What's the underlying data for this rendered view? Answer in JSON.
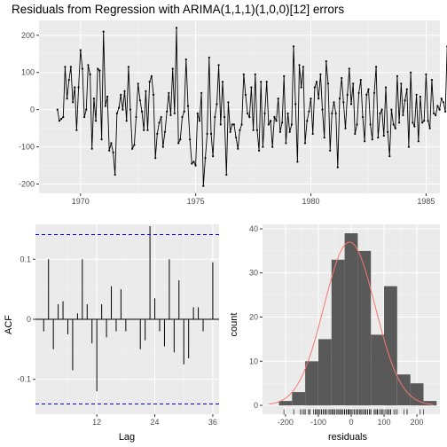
{
  "chart_data": [
    {
      "type": "line",
      "title": "Residuals from Regression with ARIMA(1,1,1)(1,0,0)[12] errors",
      "xlabel": "",
      "ylabel": "",
      "xlim": [
        1968.2,
        1985.6
      ],
      "ylim": [
        -225,
        240
      ],
      "xticks": [
        1970,
        1975,
        1980,
        1985
      ],
      "yticks": [
        -200,
        -100,
        0,
        100,
        200
      ],
      "grid": true,
      "start": 1969.0,
      "frequency": 12,
      "values": [
        0,
        -30,
        -25,
        -20,
        115,
        30,
        80,
        115,
        20,
        60,
        -55,
        60,
        160,
        110,
        -20,
        0,
        120,
        95,
        -105,
        30,
        -30,
        110,
        105,
        -80,
        210,
        10,
        35,
        -110,
        -90,
        -115,
        -175,
        -10,
        5,
        40,
        0,
        50,
        -30,
        115,
        0,
        -105,
        -95,
        -20,
        70,
        25,
        -5,
        -55,
        50,
        -55,
        75,
        90,
        40,
        -130,
        -65,
        -35,
        -20,
        -100,
        -60,
        -5,
        45,
        -15,
        110,
        -10,
        220,
        -90,
        -80,
        -20,
        -5,
        135,
        10,
        -80,
        -145,
        -140,
        -150,
        -10,
        -30,
        45,
        -205,
        -130,
        -65,
        140,
        -65,
        -125,
        -20,
        15,
        120,
        -40,
        75,
        -20,
        -175,
        20,
        -60,
        -40,
        -40,
        -75,
        -105,
        -55,
        -40,
        95,
        40,
        -10,
        -20,
        60,
        -55,
        95,
        -55,
        -110,
        75,
        -100,
        -10,
        75,
        -40,
        -30,
        -100,
        -20,
        -30,
        30,
        -60,
        -35,
        90,
        -90,
        -10,
        -60,
        -40,
        170,
        15,
        -140,
        120,
        60,
        115,
        -90,
        -30,
        -5,
        30,
        -65,
        60,
        75,
        30,
        95,
        0,
        -75,
        130,
        70,
        -110,
        -10,
        20,
        -10,
        -155,
        30,
        85,
        20,
        -50,
        40,
        110,
        15,
        70,
        -65,
        -40,
        45,
        80,
        -20,
        -85,
        40,
        55,
        -40,
        -80,
        45,
        115,
        -75,
        -10,
        0,
        -70,
        60,
        -60,
        -125,
        0,
        -40,
        -50,
        90,
        -35,
        70,
        -15,
        25,
        55,
        -100,
        100,
        -35,
        -45,
        40,
        -85,
        35,
        -35,
        -30,
        95,
        -30,
        -50,
        80,
        -10,
        -15,
        10,
        0,
        30,
        20,
        -5,
        170,
        80
      ]
    },
    {
      "type": "bar",
      "title": "",
      "xlabel": "Lag",
      "ylabel": "ACF",
      "xlim": [
        -0.7,
        37.3
      ],
      "ylim": [
        -0.158,
        0.158
      ],
      "xticks": [
        12,
        24,
        36
      ],
      "yticks": [
        -0.1,
        0.0,
        0.1
      ],
      "confidence_band": [
        -0.141,
        0.141
      ],
      "lags": [
        1,
        2,
        3,
        4,
        5,
        6,
        7,
        8,
        9,
        10,
        11,
        12,
        13,
        14,
        15,
        16,
        17,
        18,
        19,
        20,
        21,
        22,
        23,
        24,
        25,
        26,
        27,
        28,
        29,
        30,
        31,
        32,
        33,
        34,
        35,
        36
      ],
      "values": [
        -0.02,
        0.1,
        -0.05,
        0.025,
        0.03,
        -0.025,
        -0.085,
        0.01,
        0.1,
        0.025,
        -0.04,
        -0.12,
        0.025,
        -0.03,
        0.055,
        -0.02,
        0.05,
        -0.02,
        0,
        0,
        -0.05,
        -0.035,
        0.155,
        0.035,
        -0.02,
        -0.045,
        0.1,
        -0.055,
        0.065,
        -0.075,
        -0.065,
        0.02,
        0.02,
        -0.02,
        0,
        0.095
      ]
    },
    {
      "type": "histogram",
      "title": "",
      "xlabel": "residuals",
      "ylabel": "count",
      "xlim": [
        -270,
        270
      ],
      "ylim": [
        -2,
        41
      ],
      "xticks": [
        -200,
        -100,
        0,
        100,
        200
      ],
      "yticks": [
        0,
        10,
        20,
        30,
        40
      ],
      "bin_width": 40,
      "bins": [
        {
          "from": -220,
          "to": -180,
          "count": 1
        },
        {
          "from": -180,
          "to": -140,
          "count": 3
        },
        {
          "from": -140,
          "to": -100,
          "count": 10
        },
        {
          "from": -100,
          "to": -60,
          "count": 15
        },
        {
          "from": -60,
          "to": -20,
          "count": 33
        },
        {
          "from": -20,
          "to": 20,
          "count": 39
        },
        {
          "from": 20,
          "to": 60,
          "count": 35
        },
        {
          "from": 60,
          "to": 100,
          "count": 16
        },
        {
          "from": 100,
          "to": 140,
          "count": 27
        },
        {
          "from": 140,
          "to": 180,
          "count": 7
        },
        {
          "from": 180,
          "to": 220,
          "count": 5
        },
        {
          "from": 220,
          "to": 260,
          "count": 1
        }
      ],
      "normal_curve": {
        "mean": -5,
        "sd": 78,
        "peak": 37,
        "color": "#f8766d"
      },
      "rug": true
    }
  ]
}
